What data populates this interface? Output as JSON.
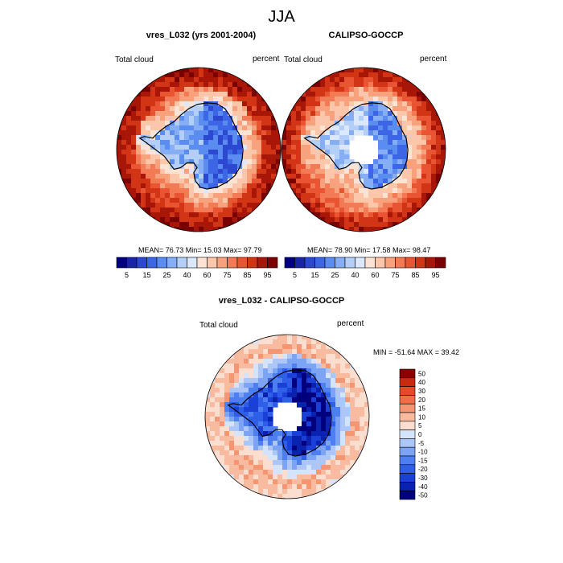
{
  "title": "JJA",
  "colors": {
    "mean_scale": [
      "#00007f",
      "#1a24a8",
      "#2d48d0",
      "#3d66e6",
      "#5b8df0",
      "#86aef5",
      "#b3cff8",
      "#dbe8fb",
      "#fde3d4",
      "#fbc6aa",
      "#f7a27d",
      "#f27b55",
      "#e95532",
      "#d23416",
      "#a81608",
      "#7a0000"
    ],
    "diff_scale": [
      "#00007f",
      "#0a22b0",
      "#1a40d8",
      "#2f5fe8",
      "#4d7ff0",
      "#7da3f4",
      "#acc6f7",
      "#d6e4fb",
      "#fbded0",
      "#f8bb9f",
      "#f49672",
      "#ee6e48",
      "#e24a28",
      "#c92a10",
      "#8b0000"
    ],
    "map_outline": "#000000"
  },
  "chart_data": [
    {
      "type": "heatmap",
      "title": "vres_L032 (yrs 2001-2004)",
      "left_label": "Total cloud",
      "right_label": "percent",
      "stats": {
        "mean": 76.73,
        "min": 15.03,
        "max": 97.79
      },
      "stats_text": "MEAN=  76.73  Min=  15.03  Max=  97.79",
      "colorbar_ticks": [
        "5",
        "15",
        "25",
        "40",
        "60",
        "75",
        "85",
        "95"
      ],
      "field": {
        "land": 0.22,
        "coast": 0.5,
        "ocean_inner": 0.82,
        "ocean_outer": 0.94,
        "pole_gap": false
      }
    },
    {
      "type": "heatmap",
      "title": "CALIPSO-GOCCP",
      "left_label": "Total cloud",
      "right_label": "percent",
      "stats": {
        "mean": 78.9,
        "min": 17.58,
        "max": 98.47
      },
      "stats_text": "MEAN=  78.90  Min=  17.58  Max=  98.47",
      "colorbar_ticks": [
        "5",
        "15",
        "25",
        "40",
        "60",
        "75",
        "85",
        "95"
      ],
      "field": {
        "land": 0.28,
        "coast": 0.55,
        "ocean_inner": 0.75,
        "ocean_outer": 0.93,
        "pole_gap": true
      }
    },
    {
      "type": "heatmap",
      "title": "vres_L032 - CALIPSO-GOCCP",
      "left_label": "Total cloud",
      "right_label": "percent",
      "stats": {
        "min": -51.64,
        "max": 39.42
      },
      "stats_text": "MIN = -51.64 MAX =  39.42",
      "colorbar_ticks": [
        "50",
        "40",
        "30",
        "20",
        "15",
        "10",
        "5",
        "0",
        "-5",
        "-10",
        "-15",
        "-20",
        "-30",
        "-40",
        "-50"
      ],
      "field": {
        "land": 0.08,
        "coast": 0.25,
        "ocean_inner": 0.66,
        "ocean_outer": 0.58,
        "pole_gap": true
      }
    }
  ]
}
